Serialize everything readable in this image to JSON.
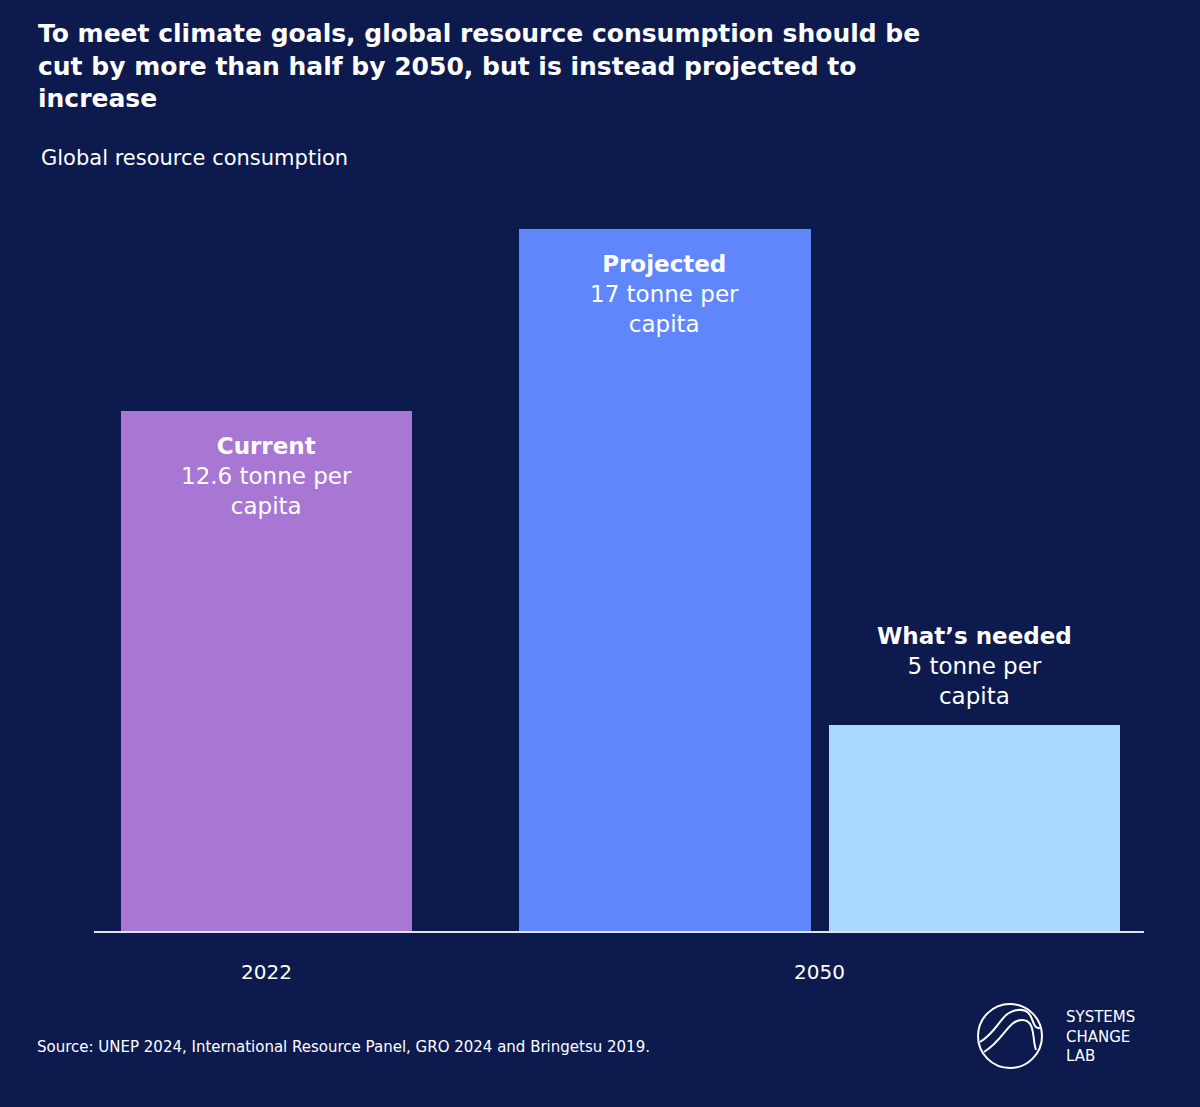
{
  "chart_data": {
    "type": "bar",
    "title": "To meet climate goals, global resource consumption should be cut by more than half by 2050, but is instead projected to increase",
    "subtitle": "Global resource consumption",
    "categories": [
      "Current",
      "Projected",
      "What’s needed"
    ],
    "values": [
      12.6,
      17,
      5
    ],
    "value_labels": [
      "12.6 tonne per capita",
      "17 tonne per capita",
      "5 tonne per capita"
    ],
    "colors": [
      "#a877d4",
      "#5f87fb",
      "#a9d8fe"
    ],
    "periods": [
      {
        "label": "2022",
        "categories": [
          "Current"
        ]
      },
      {
        "label": "2050",
        "categories": [
          "Projected",
          "What’s needed"
        ]
      }
    ],
    "ylim": [
      0,
      17
    ],
    "yticks": [],
    "grid": false,
    "data_labels": true,
    "tick_labels": "x",
    "source": "Source: UNEP 2024, International Resource Panel, GRO 2024 and Bringetsu 2019.",
    "logo": "SYSTEMS CHANGE LAB"
  }
}
